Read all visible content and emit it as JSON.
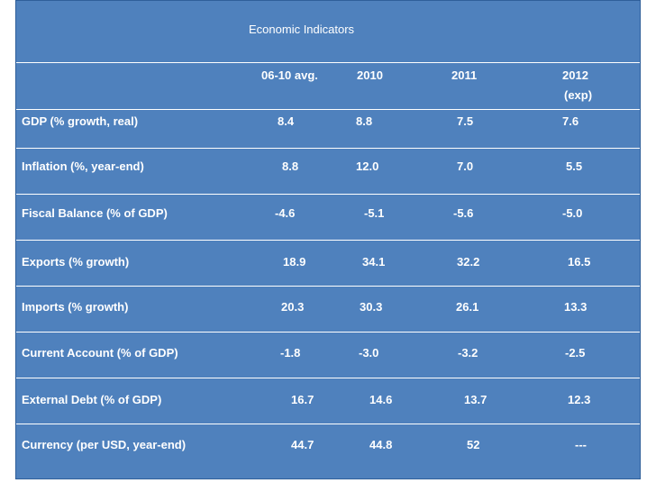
{
  "table": {
    "title": "Economic Indicators",
    "headers": [
      "06-10 avg.",
      "2010",
      "2011",
      "2012"
    ],
    "header_note": "(exp)",
    "rows": [
      {
        "label": "GDP (% growth, real)",
        "values": [
          "8.4",
          "8.8",
          "7.5",
          "7.6"
        ]
      },
      {
        "label": "Inflation (%, year-end)",
        "values": [
          "8.8",
          "12.0",
          "7.0",
          "5.5"
        ]
      },
      {
        "label": "Fiscal Balance (% of GDP)",
        "values": [
          "-4.6",
          "-5.1",
          "-5.6",
          "-5.0"
        ]
      },
      {
        "label": "Exports (% growth)",
        "values": [
          "18.9",
          "34.1",
          "32.2",
          "16.5"
        ]
      },
      {
        "label": "Imports (% growth)",
        "values": [
          "20.3",
          "30.3",
          "26.1",
          "13.3"
        ]
      },
      {
        "label": "Current Account (% of GDP)",
        "values": [
          "-1.8",
          "-3.0",
          "-3.2",
          "-2.5"
        ]
      },
      {
        "label": "External Debt (% of GDP)",
        "values": [
          "16.7",
          "14.6",
          "13.7",
          "12.3"
        ]
      },
      {
        "label": "Currency (per USD, year-end)",
        "values": [
          "44.7",
          "44.8",
          "52",
          "---"
        ]
      }
    ]
  }
}
